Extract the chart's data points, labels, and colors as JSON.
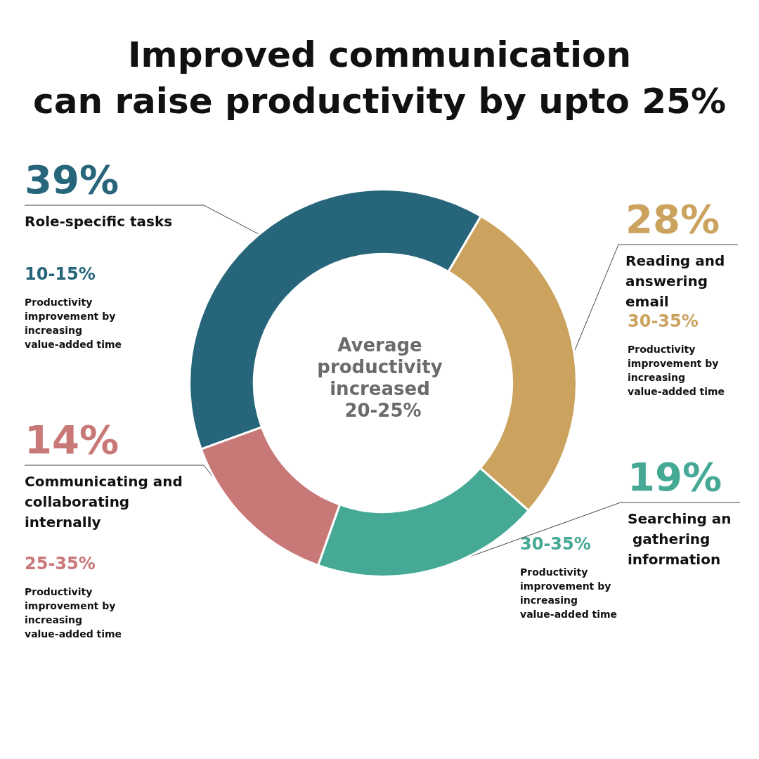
{
  "chart_data": {
    "type": "donut",
    "title": "Improved communication\ncan raise productivity by upto 25%",
    "categories": [
      "Role-specific tasks",
      "Reading and answering email",
      "Searching an gathering information",
      "Communicating and collaborating internally"
    ],
    "values": [
      39,
      28,
      19,
      14
    ],
    "colors": [
      "#27667a",
      "#cba35f",
      "#45a996",
      "#c97878"
    ],
    "value_labels": [
      "39%",
      "28%",
      "19%",
      "14%"
    ],
    "legend": false,
    "annotations": [
      "Average productivity increased 20-25%",
      "10-15%",
      "Productivity improvement by increasing value-added time",
      "30-35%",
      "Productivity improvement by increasing value-added time",
      "30-35%",
      "Productivity improvement by increasing value-added time",
      "25-35%",
      "Productivity improvement by increasing value-added time"
    ]
  }
}
